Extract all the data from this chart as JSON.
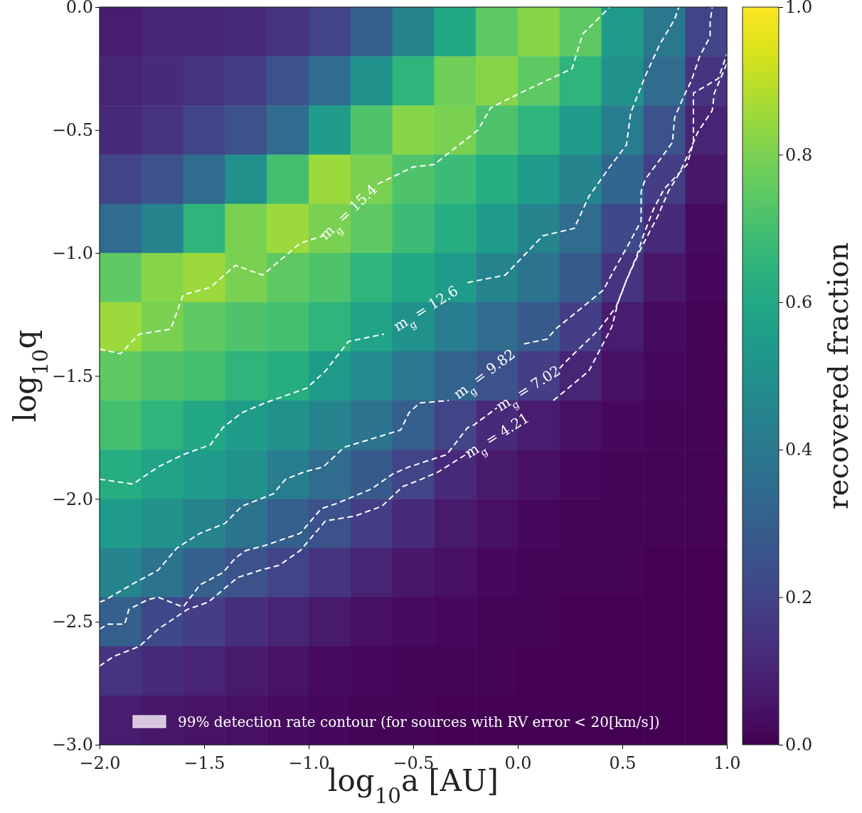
{
  "chart_data": {
    "type": "heatmap",
    "xlabel": "log$_{10}$a [AU]",
    "ylabel": "log$_{10}$q",
    "clabel": "recovered fraction",
    "xlim": [
      -2,
      1
    ],
    "ylim": [
      -3,
      0
    ],
    "xticks": [
      {
        "value": -2,
        "label": "−2.0"
      },
      {
        "value": -1.5,
        "label": "−1.5"
      },
      {
        "value": -1,
        "label": "−1.0"
      },
      {
        "value": -0.5,
        "label": "−0.5"
      },
      {
        "value": 0,
        "label": "0.0"
      },
      {
        "value": 0.5,
        "label": "0.5"
      },
      {
        "value": 1,
        "label": "1.0"
      }
    ],
    "yticks": [
      {
        "value": -3,
        "label": "−3.0"
      },
      {
        "value": -2.5,
        "label": "−2.5"
      },
      {
        "value": -2,
        "label": "−2.0"
      },
      {
        "value": -1.5,
        "label": "−1.5"
      },
      {
        "value": -1,
        "label": "−1.0"
      },
      {
        "value": -0.5,
        "label": "−0.5"
      },
      {
        "value": 0,
        "label": "0.0"
      }
    ],
    "clim": [
      0,
      1
    ],
    "cticks": [
      {
        "value": 0,
        "label": "0.0"
      },
      {
        "value": 0.2,
        "label": "0.2"
      },
      {
        "value": 0.4,
        "label": "0.4"
      },
      {
        "value": 0.6,
        "label": "0.6"
      },
      {
        "value": 0.8,
        "label": "0.8"
      },
      {
        "value": 1,
        "label": "1.0"
      }
    ],
    "cells": [
      [
        0.08,
        0.1,
        0.1,
        0.12,
        0.15,
        0.2,
        0.3,
        0.45,
        0.6,
        0.75,
        0.82,
        0.75,
        0.55,
        0.4,
        0.2
      ],
      [
        0.1,
        0.12,
        0.15,
        0.18,
        0.25,
        0.35,
        0.5,
        0.65,
        0.78,
        0.82,
        0.75,
        0.65,
        0.5,
        0.35,
        0.15
      ],
      [
        0.12,
        0.15,
        0.2,
        0.25,
        0.35,
        0.55,
        0.72,
        0.82,
        0.8,
        0.72,
        0.65,
        0.55,
        0.42,
        0.25,
        0.1
      ],
      [
        0.2,
        0.25,
        0.35,
        0.5,
        0.7,
        0.85,
        0.8,
        0.72,
        0.68,
        0.62,
        0.55,
        0.45,
        0.33,
        0.18,
        0.06
      ],
      [
        0.35,
        0.45,
        0.65,
        0.8,
        0.85,
        0.8,
        0.75,
        0.68,
        0.62,
        0.55,
        0.45,
        0.35,
        0.22,
        0.12,
        0.03
      ],
      [
        0.75,
        0.82,
        0.85,
        0.8,
        0.75,
        0.72,
        0.65,
        0.6,
        0.55,
        0.45,
        0.38,
        0.28,
        0.15,
        0.06,
        0.02
      ],
      [
        0.85,
        0.8,
        0.75,
        0.72,
        0.7,
        0.65,
        0.58,
        0.5,
        0.42,
        0.35,
        0.28,
        0.18,
        0.08,
        0.03,
        0.01
      ],
      [
        0.75,
        0.72,
        0.7,
        0.65,
        0.62,
        0.55,
        0.48,
        0.4,
        0.32,
        0.25,
        0.18,
        0.1,
        0.04,
        0.02,
        0.01
      ],
      [
        0.7,
        0.65,
        0.6,
        0.55,
        0.5,
        0.45,
        0.38,
        0.3,
        0.2,
        0.12,
        0.08,
        0.04,
        0.02,
        0.01,
        0.01
      ],
      [
        0.62,
        0.58,
        0.55,
        0.5,
        0.42,
        0.35,
        0.28,
        0.2,
        0.12,
        0.07,
        0.04,
        0.02,
        0.01,
        0.01,
        0.01
      ],
      [
        0.55,
        0.5,
        0.45,
        0.38,
        0.3,
        0.25,
        0.18,
        0.12,
        0.07,
        0.04,
        0.02,
        0.01,
        0.01,
        0.01,
        0.01
      ],
      [
        0.45,
        0.38,
        0.3,
        0.25,
        0.2,
        0.15,
        0.1,
        0.06,
        0.04,
        0.02,
        0.01,
        0.01,
        0.01,
        0,
        0
      ],
      [
        0.3,
        0.22,
        0.18,
        0.13,
        0.1,
        0.07,
        0.04,
        0.03,
        0.02,
        0.01,
        0.01,
        0,
        0,
        0,
        0
      ],
      [
        0.15,
        0.12,
        0.1,
        0.07,
        0.05,
        0.03,
        0.02,
        0.01,
        0.01,
        0.01,
        0,
        0,
        0,
        0,
        0
      ],
      [
        0.08,
        0.06,
        0.05,
        0.04,
        0.03,
        0.02,
        0.01,
        0.01,
        0,
        0,
        0,
        0,
        0,
        0,
        0
      ]
    ],
    "line_style": "dashed",
    "series": [
      {
        "type": "line",
        "name": "m$_{g}$ = 15.4",
        "color": "#ffffff",
        "x": [
          -2.0,
          -1.9,
          -1.81,
          -1.66,
          -1.6,
          -1.47,
          -1.35,
          -1.22,
          -1.04,
          -0.93,
          -0.81,
          -0.67,
          -0.5,
          -0.4,
          -0.19,
          -0.13,
          0.01,
          0.26,
          0.31,
          0.44
        ],
        "values": [
          -1.39,
          -1.41,
          -1.33,
          -1.31,
          -1.17,
          -1.14,
          -1.05,
          -1.09,
          -0.96,
          -0.93,
          null,
          -0.72,
          -0.65,
          -0.64,
          -0.5,
          -0.41,
          -0.35,
          -0.25,
          -0.11,
          0.0
        ]
      },
      {
        "type": "line",
        "name": "m$_{g}$ = 12.6",
        "color": "#ffffff",
        "x": [
          -2.0,
          -1.84,
          -1.72,
          -1.6,
          -1.47,
          -1.41,
          -1.32,
          -1.21,
          -1.01,
          -0.92,
          -0.81,
          -0.64,
          -0.44,
          -0.24,
          -0.06,
          0.12,
          0.27,
          0.34,
          0.44,
          0.52,
          0.54,
          0.61,
          0.68,
          0.75,
          0.77
        ],
        "values": [
          -1.92,
          -1.94,
          -1.87,
          -1.82,
          -1.78,
          -1.71,
          -1.65,
          -1.61,
          -1.55,
          -1.48,
          -1.36,
          -1.33,
          null,
          -1.12,
          -1.09,
          -0.93,
          -0.9,
          -0.77,
          -0.65,
          -0.56,
          -0.43,
          -0.28,
          -0.15,
          -0.05,
          0.0
        ]
      },
      {
        "type": "line",
        "name": "m$_{g}$ = 9.82",
        "color": "#ffffff",
        "x": [
          -2.0,
          -1.97,
          -1.85,
          -1.72,
          -1.63,
          -1.52,
          -1.4,
          -1.32,
          -1.17,
          -1.11,
          -1.02,
          -0.93,
          -0.83,
          -0.56,
          -0.52,
          -0.47,
          -0.33,
          -0.16,
          0.03,
          0.14,
          0.18,
          0.31,
          0.41,
          0.46,
          0.52,
          0.59,
          0.59,
          0.61,
          0.68,
          0.74,
          0.75,
          0.79,
          0.83,
          0.87,
          0.92,
          0.92,
          0.93
        ],
        "values": [
          -2.42,
          -2.41,
          -2.35,
          -2.29,
          -2.2,
          -2.14,
          -2.1,
          -2.03,
          -1.98,
          -1.92,
          -1.89,
          -1.87,
          -1.79,
          -1.72,
          -1.65,
          -1.61,
          -1.6,
          null,
          -1.37,
          -1.35,
          -1.31,
          -1.22,
          -1.15,
          -1.07,
          -0.98,
          -0.87,
          -0.75,
          -0.7,
          -0.62,
          -0.55,
          -0.45,
          -0.37,
          -0.3,
          -0.2,
          -0.12,
          -0.06,
          0.0
        ]
      },
      {
        "type": "line",
        "name": "m$_{g}$ = 7.02",
        "color": "#ffffff",
        "x": [
          -2.0,
          -1.96,
          -1.88,
          -1.86,
          -1.77,
          -1.72,
          -1.6,
          -1.52,
          -1.41,
          -1.35,
          -1.3,
          -1.21,
          -1.04,
          -0.94,
          -0.87,
          -0.7,
          -0.6,
          -0.52,
          -0.34,
          -0.24,
          -0.21,
          -0.1,
          0.05,
          0.2,
          0.22,
          0.39,
          0.47,
          0.52,
          0.57,
          0.6,
          0.65,
          0.7,
          0.81,
          0.84,
          0.84,
          0.96,
          1.0
        ],
        "values": [
          -2.53,
          -2.51,
          -2.51,
          -2.45,
          -2.41,
          -2.4,
          -2.44,
          -2.35,
          -2.3,
          -2.24,
          -2.21,
          -2.19,
          -2.14,
          -2.04,
          -2.02,
          -1.96,
          -1.9,
          -1.87,
          -1.82,
          -1.71,
          -1.7,
          -1.63,
          null,
          -1.47,
          -1.45,
          -1.31,
          -1.22,
          -1.11,
          -1.01,
          -0.93,
          -0.82,
          -0.74,
          -0.64,
          -0.55,
          -0.35,
          -0.29,
          -0.19
        ]
      },
      {
        "type": "line",
        "name": "m$_{g}$ = 4.21",
        "color": "#ffffff",
        "x": [
          -2.0,
          -1.93,
          -1.81,
          -1.72,
          -1.58,
          -1.48,
          -1.34,
          -1.23,
          -1.14,
          -1.04,
          -0.92,
          -0.78,
          -0.65,
          -0.55,
          -0.46,
          -0.38,
          -0.23,
          -0.1,
          0.17,
          0.34,
          0.45,
          0.48,
          0.52,
          0.59,
          0.67,
          0.72,
          0.77,
          0.82,
          0.86,
          0.93,
          0.94,
          1.0
        ],
        "values": [
          -2.68,
          -2.64,
          -2.6,
          -2.53,
          -2.45,
          -2.42,
          -2.32,
          -2.29,
          -2.27,
          -2.21,
          -2.09,
          -2.07,
          -2.03,
          -1.95,
          -1.92,
          -1.89,
          -1.81,
          null,
          -1.6,
          -1.48,
          -1.3,
          -1.2,
          -1.11,
          -0.98,
          -0.85,
          -0.75,
          -0.68,
          -0.59,
          -0.51,
          -0.42,
          -0.35,
          -0.23
        ]
      }
    ],
    "annotations": [
      "99% detection rate contour (for sources with RV error < 20[km/s])"
    ]
  }
}
